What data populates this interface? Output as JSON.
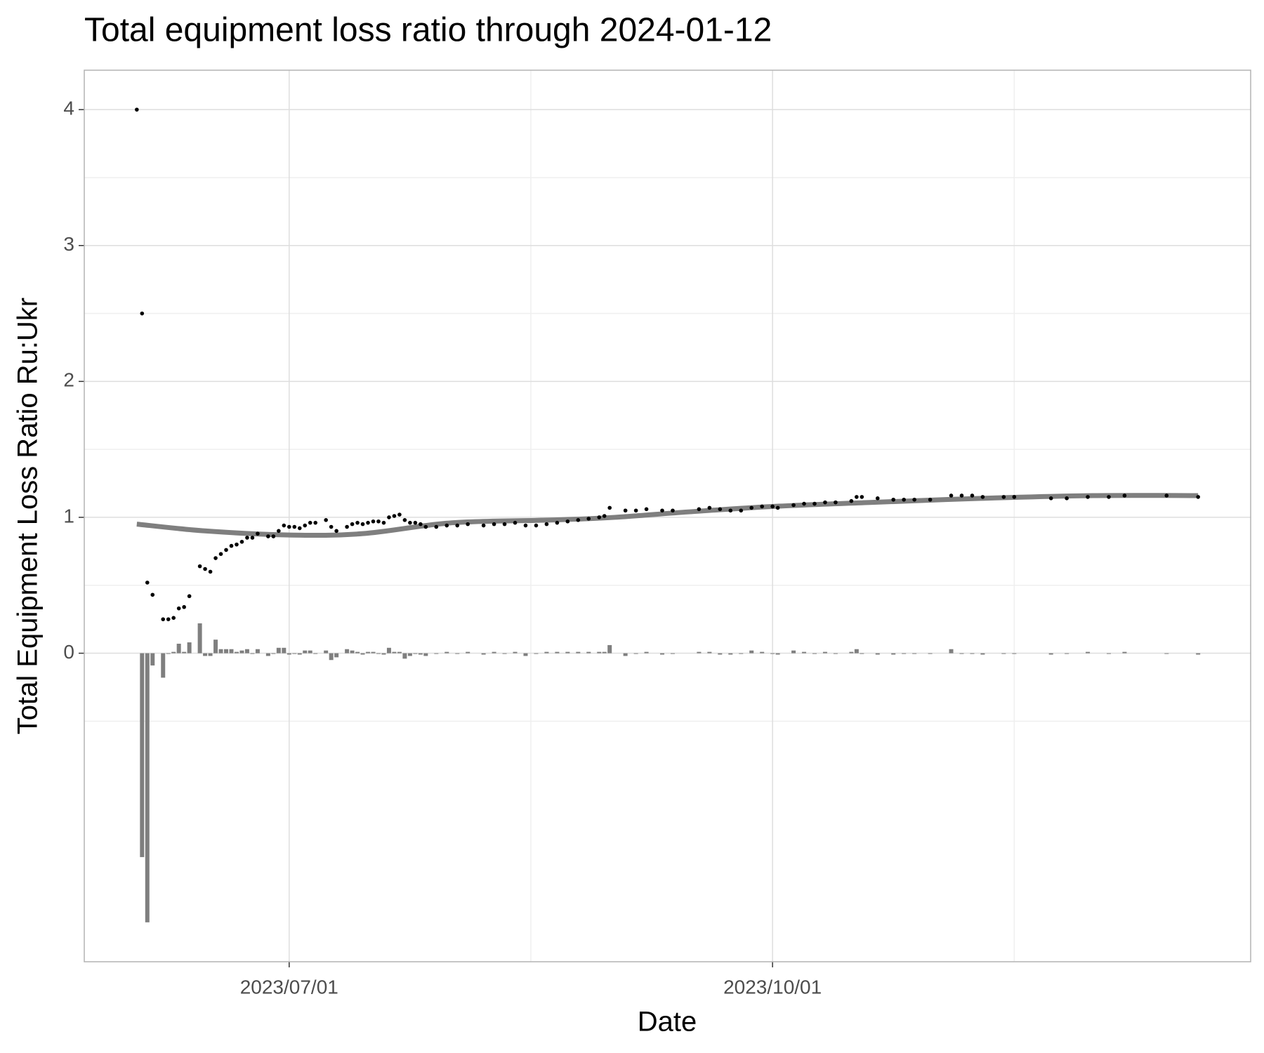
{
  "chart_data": {
    "type": "scatter",
    "title": "Total equipment loss ratio through 2024-01-12",
    "x_label": "Date",
    "y_label": "Total Equipment Loss Ratio Ru:Ukr",
    "xlim": [
      "2023/05/23",
      "2023/12/31"
    ],
    "xticks": [
      "2023/07/01",
      "2023/10/01"
    ],
    "ylim": [
      -2.27,
      4.29
    ],
    "yticks": [
      0,
      1,
      2,
      3,
      4
    ],
    "grid": true,
    "x": [
      "2023/06/02",
      "2023/06/03",
      "2023/06/04",
      "2023/06/05",
      "2023/06/07",
      "2023/06/08",
      "2023/06/09",
      "2023/06/10",
      "2023/06/11",
      "2023/06/12",
      "2023/06/14",
      "2023/06/15",
      "2023/06/16",
      "2023/06/17",
      "2023/06/18",
      "2023/06/19",
      "2023/06/20",
      "2023/06/21",
      "2023/06/22",
      "2023/06/23",
      "2023/06/24",
      "2023/06/25",
      "2023/06/27",
      "2023/06/28",
      "2023/06/29",
      "2023/06/30",
      "2023/07/01",
      "2023/07/02",
      "2023/07/03",
      "2023/07/04",
      "2023/07/05",
      "2023/07/06",
      "2023/07/08",
      "2023/07/09",
      "2023/07/10",
      "2023/07/12",
      "2023/07/13",
      "2023/07/14",
      "2023/07/15",
      "2023/07/16",
      "2023/07/17",
      "2023/07/18",
      "2023/07/19",
      "2023/07/20",
      "2023/07/21",
      "2023/07/22",
      "2023/07/23",
      "2023/07/24",
      "2023/07/25",
      "2023/07/26",
      "2023/07/27",
      "2023/07/29",
      "2023/07/31",
      "2023/08/02",
      "2023/08/04",
      "2023/08/07",
      "2023/08/09",
      "2023/08/11",
      "2023/08/13",
      "2023/08/15",
      "2023/08/17",
      "2023/08/19",
      "2023/08/21",
      "2023/08/23",
      "2023/08/25",
      "2023/08/27",
      "2023/08/29",
      "2023/08/30",
      "2023/08/31",
      "2023/09/03",
      "2023/09/05",
      "2023/09/07",
      "2023/09/10",
      "2023/09/12",
      "2023/09/17",
      "2023/09/19",
      "2023/09/21",
      "2023/09/23",
      "2023/09/25",
      "2023/09/27",
      "2023/09/29",
      "2023/10/01",
      "2023/10/02",
      "2023/10/05",
      "2023/10/07",
      "2023/10/09",
      "2023/10/11",
      "2023/10/13",
      "2023/10/16",
      "2023/10/17",
      "2023/10/18",
      "2023/10/21",
      "2023/10/24",
      "2023/10/26",
      "2023/10/28",
      "2023/10/31",
      "2023/11/04",
      "2023/11/06",
      "2023/11/08",
      "2023/11/10",
      "2023/11/14",
      "2023/11/16",
      "2023/11/23",
      "2023/11/26",
      "2023/11/30",
      "2023/12/04",
      "2023/12/07",
      "2023/12/15",
      "2023/12/21"
    ],
    "series": [
      {
        "type": "bar",
        "color": "#7f7f7f",
        "values": [
          null,
          -1.5,
          -1.98,
          -0.09,
          -0.18,
          0,
          0.01,
          0.07,
          0.01,
          0.08,
          0.22,
          -0.02,
          -0.02,
          0.1,
          0.03,
          0.03,
          0.03,
          0.01,
          0.02,
          0.03,
          0,
          0.03,
          -0.02,
          0,
          0.04,
          0.04,
          -0.01,
          0,
          -0.01,
          0.02,
          0.02,
          0,
          0.02,
          -0.05,
          -0.03,
          0.03,
          0.02,
          0.01,
          -0.01,
          0.01,
          0.01,
          0,
          -0.01,
          0.04,
          0.01,
          0.01,
          -0.04,
          -0.02,
          0,
          -0.01,
          -0.02,
          0,
          0.01,
          0,
          0.01,
          -0.01,
          0.01,
          0,
          0.01,
          -0.02,
          0,
          0.01,
          0.01,
          0.01,
          0.01,
          0.01,
          0.01,
          0.01,
          0.06,
          -0.02,
          0,
          0.01,
          -0.01,
          0,
          0.01,
          0.01,
          -0.01,
          -0.01,
          0,
          0.02,
          0.01,
          0,
          -0.01,
          0.02,
          0.01,
          0,
          0.01,
          0,
          0.01,
          0.03,
          0,
          -0.01,
          -0.01,
          0,
          0,
          0,
          0.03,
          0,
          0,
          -0.01,
          0,
          0,
          -0.01,
          0,
          0.01,
          0,
          0.01,
          0,
          -0.01
        ]
      },
      {
        "type": "smooth",
        "color": "#7f7f7f",
        "x": [
          "2023/06/02",
          "2023/06/15",
          "2023/07/01",
          "2023/07/15",
          "2023/08/01",
          "2023/08/20",
          "2023/09/01",
          "2023/09/15",
          "2023/10/01",
          "2023/10/20",
          "2023/11/10",
          "2023/12/01",
          "2023/12/21"
        ],
        "values": [
          0.95,
          0.9,
          0.87,
          0.88,
          0.96,
          0.98,
          1.0,
          1.04,
          1.08,
          1.11,
          1.14,
          1.16,
          1.16
        ]
      },
      {
        "type": "point",
        "color": "#000000",
        "values": [
          4.0,
          2.5,
          0.52,
          0.43,
          0.25,
          0.25,
          0.26,
          0.33,
          0.34,
          0.42,
          0.64,
          0.62,
          0.6,
          0.7,
          0.73,
          0.76,
          0.79,
          0.8,
          0.82,
          0.85,
          0.85,
          0.88,
          0.86,
          0.86,
          0.9,
          0.94,
          0.93,
          0.93,
          0.92,
          0.94,
          0.96,
          0.96,
          0.98,
          0.93,
          0.9,
          0.93,
          0.95,
          0.96,
          0.95,
          0.96,
          0.97,
          0.97,
          0.96,
          1.0,
          1.01,
          1.02,
          0.98,
          0.96,
          0.96,
          0.95,
          0.93,
          0.93,
          0.94,
          0.94,
          0.95,
          0.94,
          0.95,
          0.95,
          0.96,
          0.94,
          0.94,
          0.95,
          0.96,
          0.97,
          0.98,
          0.99,
          1.0,
          1.01,
          1.07,
          1.05,
          1.05,
          1.06,
          1.05,
          1.05,
          1.06,
          1.07,
          1.06,
          1.05,
          1.05,
          1.07,
          1.08,
          1.08,
          1.07,
          1.09,
          1.1,
          1.1,
          1.11,
          1.11,
          1.12,
          1.15,
          1.15,
          1.14,
          1.13,
          1.13,
          1.13,
          1.13,
          1.16,
          1.16,
          1.16,
          1.15,
          1.15,
          1.15,
          1.14,
          1.14,
          1.15,
          1.15,
          1.16,
          1.16,
          1.15
        ]
      }
    ]
  }
}
